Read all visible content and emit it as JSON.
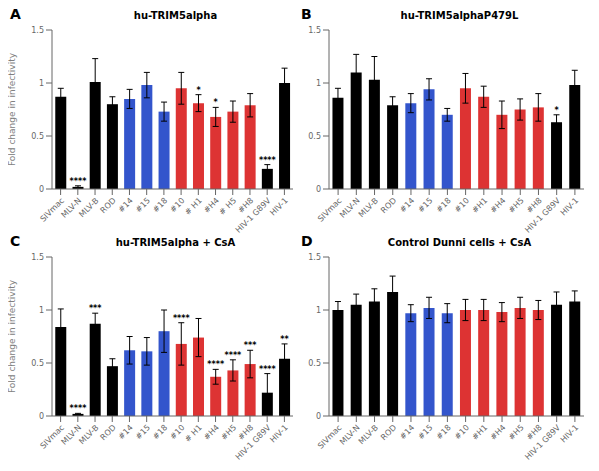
{
  "chart_data": [
    {
      "type": "bar",
      "label": "A",
      "title": "hu-TRIM5alpha",
      "ylabel": "Fold change in infectivity",
      "categories": [
        "SIVmac",
        "MLV-N",
        "MLV-B",
        "ROD",
        "#14",
        "#15",
        "#18",
        "#10",
        "# H1",
        "#H4",
        "# H5",
        "#H8",
        "HIV-1 G89V",
        "HIV-1"
      ],
      "values": [
        0.87,
        0.02,
        1.01,
        0.8,
        0.85,
        0.98,
        0.73,
        0.95,
        0.81,
        0.68,
        0.73,
        0.79,
        0.19,
        1.0
      ],
      "errors": [
        0.08,
        0.01,
        0.22,
        0.07,
        0.09,
        0.12,
        0.09,
        0.15,
        0.08,
        0.09,
        0.1,
        0.11,
        0.04,
        0.14
      ],
      "colors": [
        "#000000",
        "#000000",
        "#000000",
        "#000000",
        "#3355cc",
        "#3355cc",
        "#3355cc",
        "#dd3333",
        "#dd3333",
        "#dd3333",
        "#dd3333",
        "#dd3333",
        "#000000",
        "#000000"
      ],
      "annotations": [
        null,
        "****",
        null,
        null,
        null,
        null,
        null,
        null,
        "*",
        "*",
        null,
        null,
        "****",
        null
      ],
      "ylim": [
        0,
        1.5
      ],
      "yticks": [
        0,
        0.5,
        1,
        1.5
      ]
    },
    {
      "type": "bar",
      "label": "B",
      "title": "hu-TRIM5alphaP479L",
      "categories": [
        "SIVmac",
        "MLV-N",
        "MLV-B",
        "ROD",
        "#14",
        "#15",
        "#18",
        "#10",
        "#H1",
        "#H4",
        "#H5",
        "#H8",
        "HIV-1 G89V",
        "HIV-1"
      ],
      "values": [
        0.86,
        1.1,
        1.03,
        0.79,
        0.81,
        0.94,
        0.7,
        0.95,
        0.87,
        0.7,
        0.75,
        0.77,
        0.63,
        0.98
      ],
      "errors": [
        0.09,
        0.17,
        0.22,
        0.08,
        0.09,
        0.1,
        0.06,
        0.14,
        0.1,
        0.13,
        0.1,
        0.13,
        0.07,
        0.14
      ],
      "colors": [
        "#000000",
        "#000000",
        "#000000",
        "#000000",
        "#3355cc",
        "#3355cc",
        "#3355cc",
        "#dd3333",
        "#dd3333",
        "#dd3333",
        "#dd3333",
        "#dd3333",
        "#000000",
        "#000000"
      ],
      "annotations": [
        null,
        null,
        null,
        null,
        null,
        null,
        null,
        null,
        null,
        null,
        null,
        null,
        "*",
        null
      ],
      "ylim": [
        0,
        1.5
      ],
      "yticks": [
        0,
        0.5,
        1,
        1.5
      ]
    },
    {
      "type": "bar",
      "label": "C",
      "title": "hu-TRIM5alpha + CsA",
      "ylabel": "Fold change in infectivity",
      "categories": [
        "SIVmac",
        "MLV-N",
        "MLV-B",
        "ROD",
        "#14",
        "#15",
        "#18",
        "#10",
        "# H1",
        "#H4",
        "#H5",
        "#H8",
        "HIV-1 G89V",
        "HIV-1"
      ],
      "values": [
        0.84,
        0.02,
        0.87,
        0.47,
        0.62,
        0.61,
        0.8,
        0.68,
        0.74,
        0.37,
        0.43,
        0.49,
        0.22,
        0.54
      ],
      "errors": [
        0.17,
        0.005,
        0.1,
        0.07,
        0.13,
        0.13,
        0.2,
        0.2,
        0.18,
        0.07,
        0.1,
        0.13,
        0.18,
        0.14
      ],
      "colors": [
        "#000000",
        "#000000",
        "#000000",
        "#000000",
        "#3355cc",
        "#3355cc",
        "#3355cc",
        "#dd3333",
        "#dd3333",
        "#dd3333",
        "#dd3333",
        "#dd3333",
        "#000000",
        "#000000"
      ],
      "annotations": [
        null,
        "****",
        "***",
        null,
        null,
        null,
        null,
        "****",
        null,
        "****",
        "****",
        "***",
        "****",
        "**"
      ],
      "ylim": [
        0,
        1.5
      ],
      "yticks": [
        0,
        0.5,
        1,
        1.5
      ]
    },
    {
      "type": "bar",
      "label": "D",
      "title": "Control Dunni cells + CsA",
      "categories": [
        "SIVmac",
        "MLV-N",
        "MLV-B",
        "ROD",
        "#14",
        "#15",
        "#18",
        "#10",
        "#H1",
        "#H4",
        "#H5",
        "#H8",
        "HIV-1 G89V",
        "HIV-1"
      ],
      "values": [
        1.0,
        1.05,
        1.08,
        1.17,
        0.97,
        1.02,
        0.97,
        1.0,
        1.0,
        0.98,
        1.02,
        1.0,
        1.05,
        1.08
      ],
      "errors": [
        0.08,
        0.1,
        0.12,
        0.15,
        0.08,
        0.1,
        0.09,
        0.1,
        0.1,
        0.09,
        0.1,
        0.09,
        0.12,
        0.1
      ],
      "colors": [
        "#000000",
        "#000000",
        "#000000",
        "#000000",
        "#3355cc",
        "#3355cc",
        "#3355cc",
        "#dd3333",
        "#dd3333",
        "#dd3333",
        "#dd3333",
        "#dd3333",
        "#000000",
        "#000000"
      ],
      "annotations": [
        null,
        null,
        null,
        null,
        null,
        null,
        null,
        null,
        null,
        null,
        null,
        null,
        null,
        null
      ],
      "ylim": [
        0,
        1.5
      ],
      "yticks": [
        0,
        0.5,
        1,
        1.5
      ]
    }
  ]
}
